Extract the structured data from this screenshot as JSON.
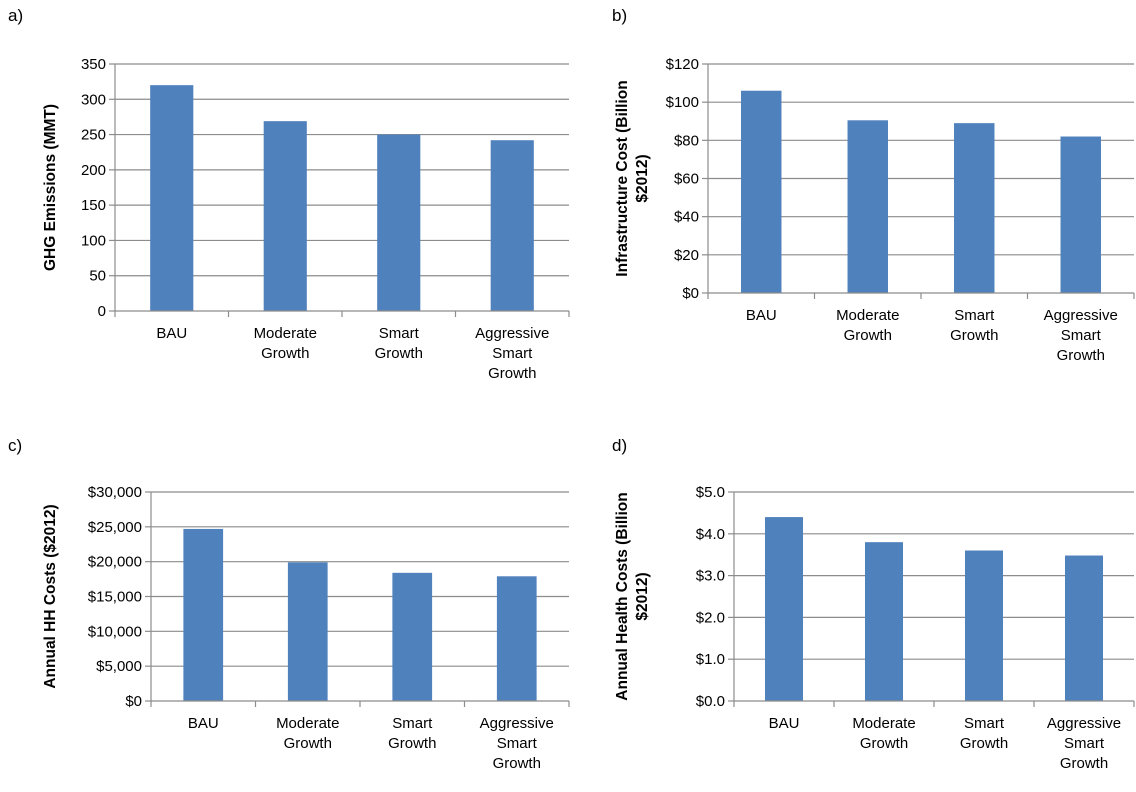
{
  "panels": [
    {
      "letter": "a)"
    },
    {
      "letter": "b)"
    },
    {
      "letter": "c)"
    },
    {
      "letter": "d)"
    }
  ],
  "colors": {
    "bar": "#4F81BD",
    "grid": "#8C8C8C",
    "axis": "#8C8C8C"
  },
  "chart_data": [
    {
      "type": "bar",
      "categories": [
        [
          "BAU"
        ],
        [
          "Moderate",
          "Growth"
        ],
        [
          "Smart",
          "Growth"
        ],
        [
          "Aggressive",
          "Smart",
          "Growth"
        ]
      ],
      "values": [
        320,
        269,
        250,
        242
      ],
      "ylabel": [
        "GHG Emissions (MMT)"
      ],
      "xlabel": "",
      "ylim": [
        0,
        350
      ],
      "yticks": [
        0,
        50,
        100,
        150,
        200,
        250,
        300,
        350
      ],
      "ytick_labels": [
        "0",
        "50",
        "100",
        "150",
        "200",
        "250",
        "300",
        "350"
      ],
      "grid": true
    },
    {
      "type": "bar",
      "categories": [
        [
          "BAU"
        ],
        [
          "Moderate",
          "Growth"
        ],
        [
          "Smart",
          "Growth"
        ],
        [
          "Aggressive",
          "Smart",
          "Growth"
        ]
      ],
      "values": [
        106,
        90.5,
        89,
        82
      ],
      "ylabel": [
        "Infrastructure Cost (Billion",
        "$2012)"
      ],
      "xlabel": "",
      "ylim": [
        0,
        120
      ],
      "yticks": [
        0,
        20,
        40,
        60,
        80,
        100,
        120
      ],
      "ytick_labels": [
        "$0",
        "$20",
        "$40",
        "$60",
        "$80",
        "$100",
        "$120"
      ],
      "grid": true
    },
    {
      "type": "bar",
      "categories": [
        [
          "BAU"
        ],
        [
          "Moderate",
          "Growth"
        ],
        [
          "Smart",
          "Growth"
        ],
        [
          "Aggressive",
          "Smart",
          "Growth"
        ]
      ],
      "values": [
        24700,
        19900,
        18400,
        17900
      ],
      "ylabel": [
        "Annual HH Costs ($2012)"
      ],
      "xlabel": "",
      "ylim": [
        0,
        30000
      ],
      "yticks": [
        0,
        5000,
        10000,
        15000,
        20000,
        25000,
        30000
      ],
      "ytick_labels": [
        "$0",
        "$5,000",
        "$10,000",
        "$15,000",
        "$20,000",
        "$25,000",
        "$30,000"
      ],
      "grid": true
    },
    {
      "type": "bar",
      "categories": [
        [
          "BAU"
        ],
        [
          "Moderate",
          "Growth"
        ],
        [
          "Smart",
          "Growth"
        ],
        [
          "Aggressive",
          "Smart",
          "Growth"
        ]
      ],
      "values": [
        4.4,
        3.8,
        3.6,
        3.48
      ],
      "ylabel": [
        "Annual Health Costs (Billion",
        "$2012)"
      ],
      "xlabel": "",
      "ylim": [
        0,
        5
      ],
      "yticks": [
        0,
        1,
        2,
        3,
        4,
        5
      ],
      "ytick_labels": [
        "$0.0",
        "$1.0",
        "$2.0",
        "$3.0",
        "$4.0",
        "$5.0"
      ],
      "grid": true
    }
  ]
}
